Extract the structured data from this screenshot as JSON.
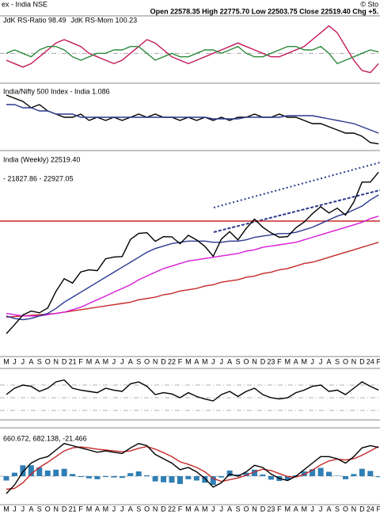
{
  "header": {
    "left": "ex - India NSE",
    "ohlc": "Open 22578.35  High 22775.70  Low 22503.75  Close 22519.40  Chg +5.",
    "watermark": "© Sto"
  },
  "chart_data": [
    {
      "type": "line",
      "ylim": [
        96,
        105
      ],
      "levels": [
        100
      ],
      "series": [
        {
          "name": "JdK RS-Ratio 98.49",
          "color": "#c2185b",
          "values": [
            99,
            98.5,
            98,
            98.5,
            99.5,
            100.5,
            101.5,
            102,
            101.5,
            101,
            100,
            99.5,
            99,
            98.5,
            99,
            100,
            101,
            102,
            101.5,
            100.5,
            99.5,
            99,
            98.5,
            99,
            99.5,
            100,
            100.5,
            101,
            101.5,
            101,
            100.5,
            100,
            99.5,
            99.5,
            100,
            100.5,
            101,
            102,
            103,
            104,
            103,
            101,
            99,
            97.5,
            97.2,
            98.5
          ]
        },
        {
          "name": "JdK RS-Mom 100.23",
          "color": "#2e8b3e",
          "values": [
            100,
            100.5,
            100,
            99.5,
            100.5,
            101,
            101,
            100.5,
            99.5,
            99,
            99.5,
            100,
            100,
            100.5,
            100.5,
            101,
            101,
            100,
            99,
            99.5,
            100,
            99.5,
            99.5,
            100,
            100.5,
            100.5,
            100,
            100.5,
            101,
            100,
            99.5,
            99.5,
            100,
            100.5,
            101,
            101,
            100.5,
            100.5,
            101,
            100,
            98.5,
            99,
            99.5,
            100,
            100.5,
            100.2
          ]
        }
      ]
    },
    {
      "type": "line",
      "ylim": [
        1.07,
        1.27
      ],
      "series": [
        {
          "name": "India/Nifty 500 Index - India 1.086",
          "color": "#000000",
          "values": [
            1.24,
            1.23,
            1.22,
            1.2,
            1.21,
            1.19,
            1.18,
            1.17,
            1.17,
            1.18,
            1.16,
            1.17,
            1.16,
            1.17,
            1.16,
            1.17,
            1.18,
            1.17,
            1.18,
            1.17,
            1.17,
            1.16,
            1.17,
            1.16,
            1.17,
            1.16,
            1.17,
            1.16,
            1.17,
            1.17,
            1.18,
            1.17,
            1.17,
            1.18,
            1.17,
            1.17,
            1.16,
            1.15,
            1.15,
            1.14,
            1.13,
            1.12,
            1.12,
            1.11,
            1.09,
            1.086
          ]
        },
        {
          "color": "#2b3a8f",
          "values": [
            1.21,
            1.21,
            1.2,
            1.2,
            1.19,
            1.19,
            1.18,
            1.18,
            1.18,
            1.17,
            1.17,
            1.17,
            1.17,
            1.17,
            1.17,
            1.17,
            1.17,
            1.17,
            1.17,
            1.17,
            1.17,
            1.17,
            1.17,
            1.17,
            1.17,
            1.165,
            1.165,
            1.165,
            1.165,
            1.17,
            1.17,
            1.17,
            1.17,
            1.17,
            1.175,
            1.175,
            1.175,
            1.175,
            1.17,
            1.165,
            1.16,
            1.155,
            1.15,
            1.14,
            1.13,
            1.12
          ]
        }
      ]
    },
    {
      "type": "line",
      "ylim": [
        8000,
        24000
      ],
      "title": "India (Weekly) 22519.40",
      "subtitle": "- 21827.86 - 22927.05",
      "levels": [
        18600
      ],
      "level_color": "#c62828",
      "categories": [
        "M",
        "J",
        "J",
        "A",
        "S",
        "O",
        "N",
        "D",
        "21",
        "F",
        "M",
        "A",
        "M",
        "J",
        "J",
        "A",
        "S",
        "O",
        "N",
        "D",
        "22",
        "F",
        "M",
        "A",
        "M",
        "J",
        "J",
        "A",
        "S",
        "O",
        "N",
        "D",
        "23",
        "F",
        "M",
        "A",
        "M",
        "J",
        "J",
        "A",
        "S",
        "O",
        "N",
        "D",
        "24",
        "F"
      ],
      "series": [
        {
          "color": "#c62828",
          "values": [
            10900,
            10950,
            11000,
            11050,
            11100,
            11150,
            11200,
            11300,
            11400,
            11500,
            11600,
            11700,
            11800,
            11900,
            12000,
            12100,
            12300,
            12400,
            12500,
            12700,
            12800,
            13000,
            13100,
            13200,
            13400,
            13500,
            13700,
            13800,
            13900,
            14100,
            14200,
            14400,
            14500,
            14700,
            14800,
            15000,
            15200,
            15300,
            15500,
            15700,
            15900,
            16100,
            16300,
            16500,
            16700,
            16900
          ]
        },
        {
          "color": "#d81bd8",
          "values": [
            11200,
            11100,
            11000,
            11000,
            11000,
            11100,
            11200,
            11300,
            11500,
            11700,
            12000,
            12300,
            12600,
            12900,
            13200,
            13500,
            13900,
            14200,
            14500,
            14800,
            15000,
            15200,
            15400,
            15500,
            15600,
            15700,
            15800,
            15900,
            16000,
            16200,
            16300,
            16500,
            16600,
            16700,
            16800,
            16900,
            17100,
            17300,
            17500,
            17700,
            17900,
            18100,
            18300,
            18500,
            18800,
            19000
          ]
        },
        {
          "color": "#2b3a8f",
          "values": [
            11000,
            10800,
            10700,
            10800,
            11000,
            11200,
            11600,
            12100,
            12500,
            12900,
            13300,
            13700,
            14100,
            14500,
            14900,
            15300,
            15700,
            16100,
            16400,
            16600,
            16800,
            16900,
            17000,
            17000,
            17000,
            16900,
            16900,
            17000,
            17000,
            17100,
            17300,
            17400,
            17500,
            17600,
            17600,
            17700,
            17900,
            18100,
            18400,
            18700,
            19000,
            19200,
            19500,
            19800,
            20300,
            20700
          ]
        },
        {
          "color": "#000000",
          "values": [
            9580,
            10300,
            11070,
            11390,
            11250,
            11640,
            12970,
            13980,
            13630,
            14530,
            14690,
            14630,
            15580,
            15720,
            15760,
            17130,
            17620,
            17670,
            16980,
            17350,
            17340,
            16790,
            17460,
            17100,
            16580,
            15780,
            17160,
            17760,
            17090,
            18010,
            18760,
            18110,
            17660,
            17300,
            17360,
            18070,
            18530,
            19190,
            19750,
            19250,
            19640,
            19080,
            20130,
            21730,
            21730,
            22520
          ]
        }
      ]
    },
    {
      "type": "line",
      "ylim": [
        20,
        90
      ],
      "levels": [
        70,
        50,
        30
      ],
      "series": [
        {
          "color": "#000000",
          "values": [
            55,
            65,
            70,
            68,
            60,
            65,
            75,
            78,
            65,
            62,
            60,
            58,
            65,
            62,
            60,
            72,
            75,
            68,
            55,
            58,
            56,
            50,
            58,
            52,
            48,
            45,
            55,
            60,
            52,
            60,
            65,
            55,
            50,
            48,
            50,
            58,
            62,
            68,
            70,
            60,
            62,
            55,
            65,
            75,
            68,
            62
          ]
        }
      ]
    },
    {
      "type": "line",
      "ylim": [
        -600,
        1000
      ],
      "title": "660.672, 682.138, -21.466",
      "levels": [
        0
      ],
      "histogram": {
        "color": "#2f7fb5",
        "values": [
          -100,
          80,
          250,
          250,
          200,
          130,
          150,
          170,
          50,
          -20,
          -50,
          -70,
          -20,
          -30,
          -40,
          70,
          110,
          20,
          -120,
          -140,
          -150,
          -180,
          -70,
          -100,
          -150,
          -200,
          -30,
          130,
          40,
          80,
          150,
          40,
          -80,
          -110,
          -90,
          20,
          110,
          160,
          190,
          100,
          10,
          -70,
          50,
          170,
          120,
          -21.466
        ]
      },
      "series": [
        {
          "color": "#c62828",
          "values": [
            -300,
            -280,
            -150,
            50,
            200,
            320,
            450,
            580,
            650,
            670,
            650,
            620,
            600,
            580,
            560,
            580,
            640,
            680,
            620,
            540,
            450,
            330,
            270,
            200,
            100,
            -50,
            -120,
            -80,
            -40,
            20,
            100,
            160,
            130,
            60,
            -10,
            -20,
            40,
            140,
            260,
            350,
            390,
            370,
            400,
            480,
            580,
            682.138
          ]
        },
        {
          "color": "#000000",
          "values": [
            -400,
            -200,
            100,
            300,
            400,
            450,
            600,
            750,
            700,
            650,
            600,
            550,
            580,
            550,
            520,
            650,
            750,
            700,
            500,
            400,
            300,
            150,
            200,
            100,
            -50,
            -250,
            -150,
            50,
            0,
            100,
            250,
            200,
            50,
            -50,
            -100,
            0,
            150,
            300,
            450,
            450,
            400,
            300,
            450,
            650,
            700,
            660.672
          ]
        }
      ]
    }
  ]
}
